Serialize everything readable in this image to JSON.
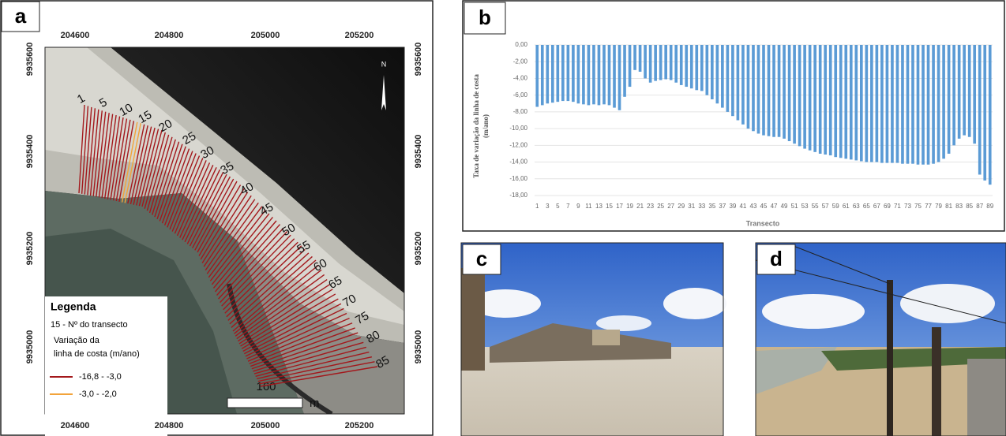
{
  "map": {
    "label": "a",
    "xticks": [
      204600,
      204800,
      205000,
      205200
    ],
    "yticks": [
      9935600,
      9935400,
      9935200,
      9935000
    ],
    "north": "N",
    "transect_labels": [
      "1",
      "5",
      "10",
      "15",
      "20",
      "25",
      "30",
      "35",
      "40",
      "45",
      "50",
      "55",
      "60",
      "65",
      "70",
      "75",
      "80",
      "85"
    ],
    "scale_label": "160",
    "scale_unit": "m",
    "legend": {
      "title": "Legenda",
      "transect_note": "15 - Nº do transecto",
      "variable": [
        "Variação da",
        "linha de costa (m/ano)"
      ],
      "classes": [
        {
          "label": "-16,8 - -3,0",
          "color": "#a3181c"
        },
        {
          "label": "-3,0 - -2,0",
          "color": "#f2a33a"
        }
      ]
    }
  },
  "chart_data": {
    "type": "bar",
    "label": "b",
    "ylabel": [
      "Taxa de variação da linha de costa",
      "(m/ano)"
    ],
    "xlabel": "Transecto",
    "categories": [
      "1",
      null,
      "3",
      null,
      "5",
      null,
      "7",
      null,
      "9",
      null,
      "11",
      null,
      "13",
      null,
      "15",
      null,
      "17",
      null,
      "19",
      null,
      "21",
      null,
      "23",
      null,
      "25",
      null,
      "27",
      null,
      "29",
      null,
      "31",
      null,
      "33",
      null,
      "35",
      null,
      "37",
      null,
      "39",
      null,
      "41",
      null,
      "43",
      null,
      "45",
      null,
      "47",
      null,
      "49",
      null,
      "51",
      null,
      "53",
      null,
      "55",
      null,
      "57",
      null,
      "59",
      null,
      "61",
      null,
      "63",
      null,
      "65",
      null,
      "67",
      null,
      "69",
      null,
      "71",
      null,
      "73",
      null,
      "75",
      null,
      "77",
      null,
      "79",
      null,
      "81",
      null,
      "83",
      null,
      "85",
      null,
      "87",
      null,
      "89"
    ],
    "values": [
      -7.4,
      -7.2,
      -7.0,
      -6.9,
      -6.8,
      -6.7,
      -6.7,
      -6.8,
      -7.0,
      -7.1,
      -7.2,
      -7.1,
      -7.2,
      -7.1,
      -7.2,
      -7.5,
      -7.8,
      -6.2,
      -5.0,
      -3.0,
      -3.2,
      -4.0,
      -4.5,
      -4.3,
      -4.2,
      -4.1,
      -4.2,
      -4.5,
      -4.8,
      -5.0,
      -5.2,
      -5.4,
      -5.5,
      -6.0,
      -6.5,
      -7.0,
      -7.5,
      -8.0,
      -8.5,
      -9.0,
      -9.5,
      -10.0,
      -10.3,
      -10.6,
      -10.8,
      -10.9,
      -11.0,
      -11.0,
      -11.2,
      -11.5,
      -11.8,
      -12.1,
      -12.4,
      -12.6,
      -12.8,
      -13.0,
      -13.1,
      -13.2,
      -13.4,
      -13.5,
      -13.6,
      -13.7,
      -13.8,
      -13.9,
      -14.0,
      -14.0,
      -14.0,
      -14.1,
      -14.1,
      -14.1,
      -14.1,
      -14.2,
      -14.2,
      -14.2,
      -14.3,
      -14.3,
      -14.3,
      -14.2,
      -14.0,
      -13.6,
      -13.0,
      -12.0,
      -11.2,
      -10.8,
      -11.0,
      -11.8,
      -15.5,
      -16.2,
      -16.7
    ],
    "color": "#5b9bd5",
    "ylim": [
      -18,
      0
    ],
    "yticks": [
      {
        "value": 0,
        "label": "0,00"
      },
      {
        "value": -2,
        "label": "-2,00"
      },
      {
        "value": -4,
        "label": "-4,00"
      },
      {
        "value": -6,
        "label": "-6,00"
      },
      {
        "value": -8,
        "label": "-8,00"
      },
      {
        "value": -10,
        "label": "-10,00"
      },
      {
        "value": -12,
        "label": "-12,00"
      },
      {
        "value": -14,
        "label": "-14,00"
      },
      {
        "value": -16,
        "label": "-16,00"
      },
      {
        "value": -18,
        "label": "-18,00"
      }
    ],
    "grid": true
  },
  "photos": [
    {
      "label": "c"
    },
    {
      "label": "d"
    }
  ]
}
